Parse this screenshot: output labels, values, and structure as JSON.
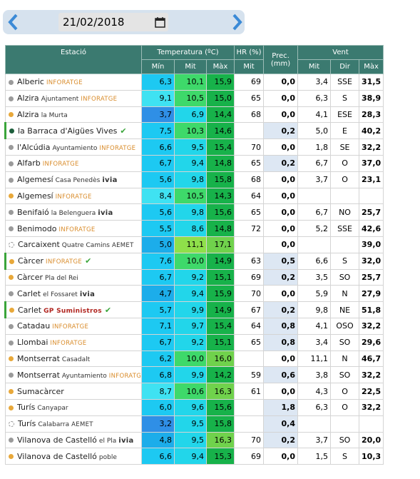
{
  "date": "21/02/2018",
  "table": {
    "header": {
      "station": "Estació",
      "temperature": "Temperatura (ºC)",
      "humidity": "HR (%)",
      "precipitation": "Prec. (mm)",
      "wind": "Vent",
      "sub": [
        "Mín",
        "Mit",
        "Màx",
        "Mit",
        "Mit",
        "Dir",
        "Màx"
      ]
    },
    "rows": [
      {
        "dot": "#9a9a9a",
        "name": "Alberic",
        "source": "INFORATGE",
        "values": [
          "6,3",
          "10,1",
          "15,9",
          "69",
          "0,0",
          "3,4",
          "SSE",
          "31,5"
        ]
      },
      {
        "dot": "#9a9a9a",
        "name": "Alzira",
        "place": "Ajuntament",
        "source": "INFORATGE",
        "values": [
          "9,1",
          "10,5",
          "15,0",
          "65",
          "0,0",
          "6,3",
          "S",
          "38,9"
        ]
      },
      {
        "dot": "#e8a83a",
        "name": "Alzira",
        "place": "la Murta",
        "values": [
          "3,7",
          "6,9",
          "14,4",
          "68",
          "0,0",
          "4,1",
          "ESE",
          "28,3"
        ]
      },
      {
        "dot": "#1d5e3c",
        "name": "la Barraca d'Aigües Vives",
        "check": true,
        "values": [
          "7,5",
          "10,3",
          "14,6",
          null,
          "0,2",
          "5,0",
          "E",
          "40,2"
        ]
      },
      {
        "dot": "#9a9a9a",
        "name": "l'Alcúdia",
        "place": "Ayuntamiento",
        "source": "INFORATGE",
        "values": [
          "6,6",
          "9,5",
          "15,4",
          "70",
          "0,0",
          "1,8",
          "SE",
          "32,2"
        ]
      },
      {
        "dot": "#9a9a9a",
        "name": "Alfarb",
        "source": "INFORATGE",
        "values": [
          "6,7",
          "9,4",
          "14,8",
          "65",
          "0,2",
          "6,7",
          "O",
          "37,0"
        ]
      },
      {
        "dot": "#9a9a9a",
        "name": "Algemesí",
        "place": "Casa Penedès",
        "source": "ivia",
        "values": [
          "5,6",
          "9,8",
          "15,8",
          "68",
          "0,0",
          "3,7",
          "O",
          "23,1"
        ]
      },
      {
        "dot": "#e8a83a",
        "name": "Algemesí",
        "source": "INFORATGE",
        "values": [
          "8,4",
          "10,5",
          "14,3",
          "64",
          "0,0",
          null,
          null,
          null
        ]
      },
      {
        "dot": "#9a9a9a",
        "name": "Benifaió",
        "place": "la Belenguera",
        "source": "ivia",
        "values": [
          "5,6",
          "9,8",
          "15,6",
          "65",
          "0,0",
          "6,7",
          "NO",
          "25,7"
        ]
      },
      {
        "dot": "#9a9a9a",
        "name": "Benimodo",
        "source": "INFORATGE",
        "values": [
          "5,5",
          "8,6",
          "14,8",
          "72",
          "0,0",
          "5,2",
          "SSE",
          "42,6"
        ]
      },
      {
        "dot": "#ffffff",
        "name": "Carcaixent",
        "place": "Quatre Camins",
        "source": "AEMET",
        "values": [
          "5,0",
          "11,1",
          "17,1",
          null,
          "0,0",
          null,
          null,
          "39,0"
        ]
      },
      {
        "dot": "#e8a83a",
        "name": "Càrcer",
        "source": "INFORATGE",
        "check": true,
        "values": [
          "7,6",
          "10,0",
          "14,9",
          "63",
          "0,5",
          "6,6",
          "S",
          "32,0"
        ]
      },
      {
        "dot": "#e8a83a",
        "name": "Càrcer",
        "place": "Pla del Rei",
        "values": [
          "6,7",
          "9,2",
          "15,1",
          "69",
          "0,2",
          "3,5",
          "SO",
          "25,7"
        ]
      },
      {
        "dot": "#9a9a9a",
        "name": "Carlet",
        "place": "el Fossaret",
        "source": "ivia",
        "values": [
          "4,7",
          "9,4",
          "15,9",
          "70",
          "0,0",
          "5,9",
          "N",
          "27,9"
        ]
      },
      {
        "dot": "#e8a83a",
        "name": "Carlet",
        "source": "GP Suministros",
        "check": true,
        "values": [
          "5,7",
          "9,9",
          "14,9",
          "67",
          "0,2",
          "9,8",
          "NE",
          "51,8"
        ]
      },
      {
        "dot": "#9a9a9a",
        "name": "Catadau",
        "source": "INFORATGE",
        "values": [
          "7,1",
          "9,7",
          "15,4",
          "64",
          "0,8",
          "4,1",
          "OSO",
          "32,2"
        ]
      },
      {
        "dot": "#9a9a9a",
        "name": "Llombai",
        "source": "INFORATGE",
        "values": [
          "6,7",
          "9,2",
          "15,1",
          "65",
          "0,8",
          "3,4",
          "SO",
          "29,6"
        ]
      },
      {
        "dot": "#e8a83a",
        "name": "Montserrat",
        "place": "Casadalt",
        "values": [
          "6,2",
          "10,0",
          "16,0",
          null,
          "0,0",
          "11,1",
          "N",
          "46,7"
        ]
      },
      {
        "dot": "#9a9a9a",
        "name": "Montserrat",
        "place": "Ayuntamiento",
        "source": "INFORATGE",
        "values": [
          "6,8",
          "9,9",
          "14,2",
          "59",
          "0,6",
          "3,8",
          "SO",
          "32,2"
        ]
      },
      {
        "dot": "#e8a83a",
        "name": "Sumacàrcer",
        "values": [
          "8,7",
          "10,6",
          "16,3",
          "61",
          "0,0",
          "4,3",
          "O",
          "22,5"
        ]
      },
      {
        "dot": "#e8a83a",
        "name": "Turís",
        "place": "Canyapar",
        "values": [
          "6,0",
          "9,6",
          "15,6",
          null,
          "1,8",
          "6,3",
          "O",
          "32,2"
        ]
      },
      {
        "dot": "#ffffff",
        "name": "Turís",
        "place": "Calabarra",
        "source": "AEMET",
        "values": [
          "3,2",
          "9,5",
          "15,8",
          null,
          "0,4",
          null,
          null,
          null
        ]
      },
      {
        "dot": "#9a9a9a",
        "name": "Vilanova de Castelló",
        "place": "el Pla",
        "source": "ivia",
        "values": [
          "4,8",
          "9,5",
          "16,3",
          "70",
          "0,2",
          "3,7",
          "SO",
          "20,0"
        ]
      },
      {
        "dot": "#e8a83a",
        "name": "Vilanova de Castelló",
        "place": "poble",
        "values": [
          "6,6",
          "9,4",
          "15,3",
          "69",
          "0,0",
          "1,5",
          "S",
          "10,3"
        ]
      }
    ]
  }
}
